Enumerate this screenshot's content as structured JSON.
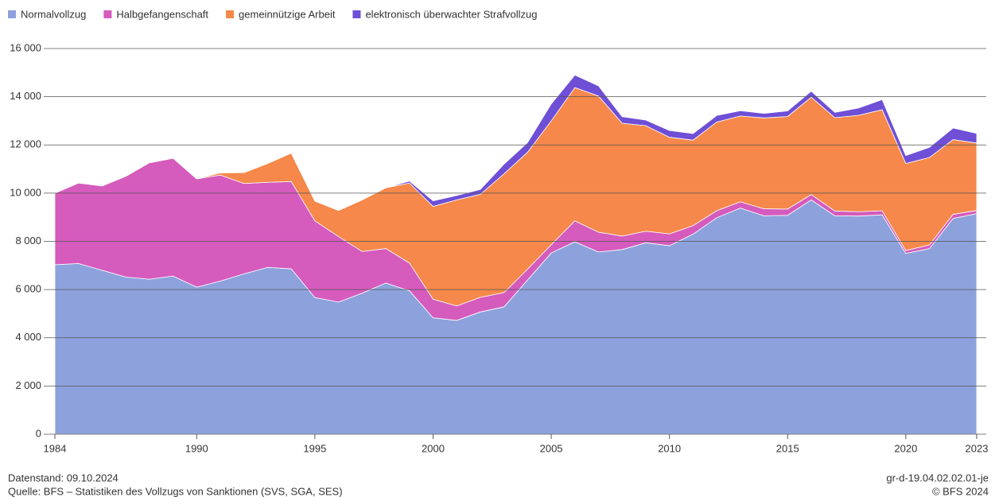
{
  "chart_data": {
    "type": "stacked_area",
    "x": [
      1984,
      1985,
      1986,
      1987,
      1988,
      1989,
      1990,
      1991,
      1992,
      1993,
      1994,
      1995,
      1996,
      1997,
      1998,
      1999,
      2000,
      2001,
      2002,
      2003,
      2004,
      2005,
      2006,
      2007,
      2008,
      2009,
      2010,
      2011,
      2012,
      2013,
      2014,
      2015,
      2016,
      2017,
      2018,
      2019,
      2020,
      2021,
      2022,
      2023
    ],
    "series": [
      {
        "name": "Normalvollzug",
        "color": "#8da2dc",
        "values": [
          7030,
          7080,
          6800,
          6520,
          6430,
          6560,
          6100,
          6350,
          6650,
          6920,
          6860,
          5670,
          5480,
          5850,
          6270,
          5950,
          4830,
          4720,
          5070,
          5280,
          6400,
          7520,
          7980,
          7560,
          7660,
          7940,
          7820,
          8300,
          8980,
          9380,
          9060,
          9080,
          9720,
          9060,
          9050,
          9100,
          7500,
          7700,
          8950,
          9150
        ]
      },
      {
        "name": "Halbgefangenschaft",
        "color": "#d55bbd",
        "values": [
          2970,
          3340,
          3500,
          4180,
          4830,
          4890,
          4490,
          4400,
          3750,
          3530,
          3620,
          3180,
          2720,
          1730,
          1430,
          1150,
          770,
          600,
          610,
          590,
          450,
          340,
          870,
          820,
          560,
          480,
          490,
          350,
          290,
          260,
          290,
          260,
          220,
          200,
          180,
          170,
          120,
          150,
          170,
          130
        ]
      },
      {
        "name": "gemeinnützige Arbeit",
        "color": "#f5884a",
        "values": [
          0,
          0,
          0,
          0,
          0,
          0,
          10,
          90,
          450,
          780,
          1180,
          820,
          1080,
          2140,
          2520,
          3320,
          3850,
          4400,
          4270,
          4930,
          4850,
          5140,
          5530,
          5650,
          4680,
          4380,
          4010,
          3550,
          3680,
          3560,
          3770,
          3840,
          4040,
          3870,
          4000,
          4190,
          3610,
          3630,
          3100,
          2800
        ]
      },
      {
        "name": "elektronisch überwachter Strafvollzug",
        "color": "#6e4fd6",
        "values": [
          0,
          0,
          0,
          0,
          0,
          0,
          0,
          0,
          0,
          0,
          0,
          0,
          0,
          0,
          0,
          80,
          230,
          180,
          200,
          400,
          400,
          700,
          520,
          420,
          270,
          230,
          280,
          270,
          270,
          220,
          190,
          230,
          250,
          220,
          300,
          420,
          330,
          420,
          480,
          400
        ]
      }
    ],
    "xlim": [
      1984,
      2023
    ],
    "xticks": [
      1984,
      1990,
      1995,
      2000,
      2005,
      2010,
      2015,
      2020,
      2023
    ],
    "ylim": [
      0,
      16000
    ],
    "yticks": [
      0,
      {
        "value": 2000,
        "label": "2 000"
      },
      {
        "value": 4000,
        "label": "4 000"
      },
      {
        "value": 6000,
        "label": "6 000"
      },
      {
        "value": 8000,
        "label": "8 000"
      },
      {
        "value": 10000,
        "label": "10 000"
      },
      {
        "value": 12000,
        "label": "12 000"
      },
      {
        "value": 14000,
        "label": "14 000"
      },
      {
        "value": 16000,
        "label": "16 000"
      }
    ],
    "grid": true,
    "footer": {
      "date": "Datenstand: 09.10.2024",
      "source": "Quelle: BFS – Statistiken des Vollzugs von Sanktionen (SVS, SGA, SES)",
      "code": "gr-d-19.04.02.02.01-je",
      "copyright": "© BFS 2024"
    }
  }
}
